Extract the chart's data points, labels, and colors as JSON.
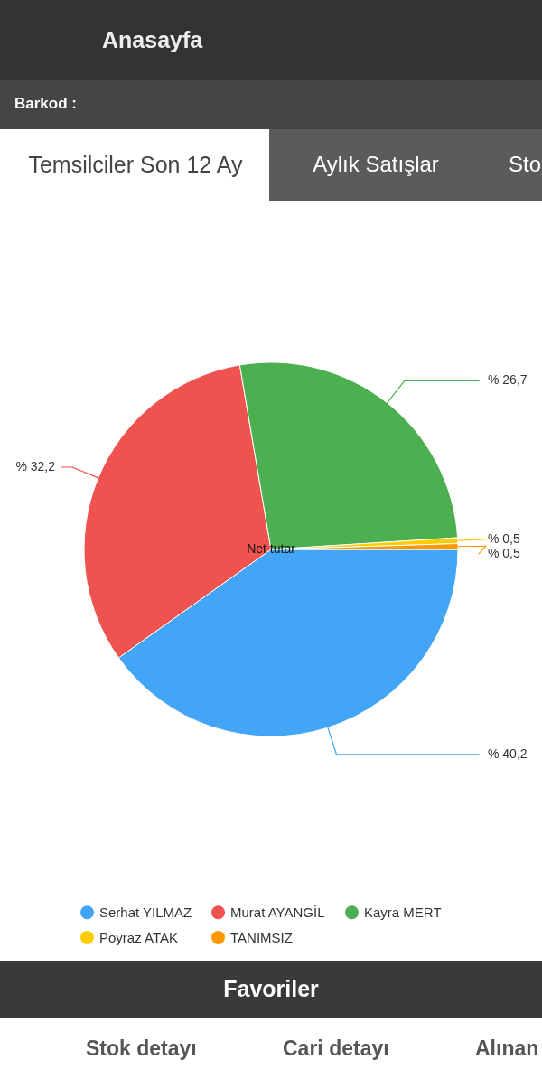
{
  "chart_data": {
    "type": "pie",
    "title": "Temsilciler Son 12 Ay",
    "subtitle": "Net tutar",
    "categories": [
      "Serhat YILMAZ",
      "Murat AYANGİL",
      "Kayra MERT",
      "Poyraz ATAK",
      "TANIMSIZ"
    ],
    "values": [
      40.2,
      32.2,
      26.7,
      0.5,
      0.5
    ],
    "colors": [
      "#42a5f5",
      "#ef5350",
      "#4caf50",
      "#ffcc00",
      "#ff9800"
    ],
    "value_labels": [
      "% 40,2",
      "% 32,2",
      "% 26,7",
      "% 0,5",
      "% 0,5"
    ],
    "legend": "bottom",
    "annotations": [
      "Anasayfa",
      "Barkod :",
      "Aylık Satışlar",
      "Sto",
      "Favoriler",
      "Stok detayı",
      "Cari detayı",
      "Alınan"
    ]
  }
}
